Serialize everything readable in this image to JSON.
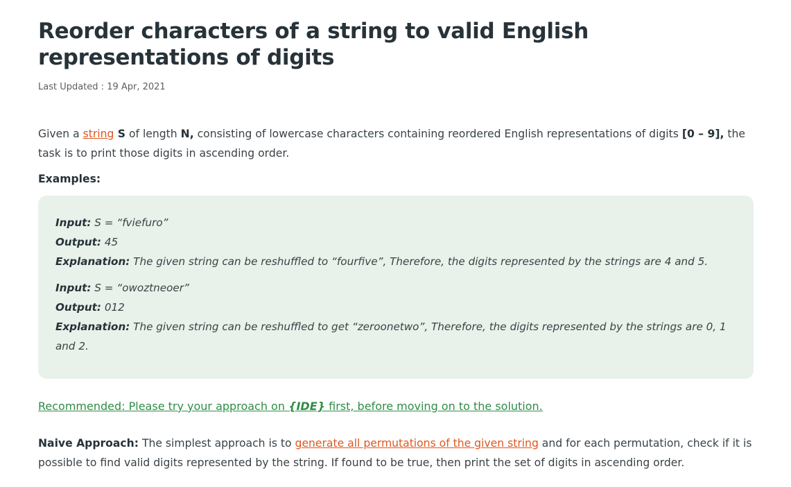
{
  "article": {
    "title": "Reorder characters of a string to valid English representations of digits",
    "last_updated": "Last Updated : 19 Apr, 2021"
  },
  "intro": {
    "given_a": "Given a ",
    "string_link": "string",
    "s_var": " S",
    "of_length": " of length ",
    "n_var": "N,",
    "consisting": " consisting of lowercase characters containing reordered English representations of digits ",
    "digit_range": "[0 – 9],",
    "task": " the task is to print those digits in ascending order."
  },
  "examples_heading": "Examples:",
  "examples": [
    {
      "input_label": "Input:",
      "input_value": " S = “fviefuro”",
      "output_label": "Output:",
      "output_value": " 45",
      "explanation_label": "Explanation:",
      "explanation_value": " The given string can be reshuffled to “fourfive”, Therefore, the digits represented by the strings are 4 and 5."
    },
    {
      "input_label": "Input:",
      "input_value": " S = “owoztneoer”",
      "output_label": "Output:",
      "output_value": " 012",
      "explanation_label": "Explanation:",
      "explanation_value": " The given string can be reshuffled to get “zeroonetwo”, Therefore, the digits represented by the strings are 0, 1 and 2."
    }
  ],
  "recommended": {
    "prefix": "Recommended: Please try your approach on ",
    "ide": "{IDE}",
    "suffix": " first, before moving on to the solution."
  },
  "naive": {
    "label": "Naive Approach:",
    "text1": " The simplest approach is to ",
    "link": "generate all permutations of the given string",
    "text2": " and for each permutation, check if it is possible to find valid digits represented by the string. If found to be true, then print the set of digits in ascending order."
  },
  "colors": {
    "link_orange": "#e0571f",
    "recommended_green": "#2f8d46",
    "example_bg": "#e8f2ea"
  }
}
